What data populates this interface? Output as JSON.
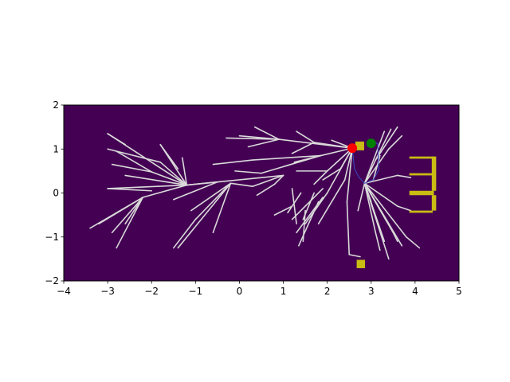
{
  "chart_data": {
    "type": "scatter",
    "title": "",
    "xlabel": "",
    "ylabel": "",
    "xlim": [
      -4,
      5
    ],
    "ylim": [
      -2,
      2
    ],
    "xticks": [
      -4,
      -3,
      -2,
      -1,
      0,
      1,
      2,
      3,
      4,
      5
    ],
    "yticks": [
      -2,
      -1,
      0,
      1,
      2
    ],
    "xtick_labels": [
      "−4",
      "−3",
      "−2",
      "−1",
      "0",
      "1",
      "2",
      "3",
      "4",
      "5"
    ],
    "ytick_labels": [
      "−2",
      "−1",
      "0",
      "1",
      "2"
    ],
    "grid": false,
    "colors": {
      "background": "#440154",
      "tree_edge": "#d9d9d9",
      "path": "#3b4cc0",
      "obstacle": "#c9bc12",
      "start": "#ff0000",
      "goal": "#008000"
    },
    "start": {
      "x": 2.57,
      "y": 1.02
    },
    "goal": {
      "x": 3.0,
      "y": 1.13
    },
    "obstacles": [
      {
        "x0": 2.64,
        "y0": 0.97,
        "x1": 2.84,
        "y1": 1.17
      },
      {
        "x0": 2.67,
        "y0": -1.71,
        "x1": 2.86,
        "y1": -1.52
      },
      {
        "x0": 3.87,
        "y0": 0.78,
        "x1": 4.43,
        "y1": 0.83
      },
      {
        "x0": 3.87,
        "y0": 0.4,
        "x1": 4.43,
        "y1": 0.45
      },
      {
        "x0": 3.87,
        "y0": -0.05,
        "x1": 4.43,
        "y1": 0.05
      },
      {
        "x0": 3.87,
        "y0": -0.45,
        "x1": 4.4,
        "y1": -0.4
      },
      {
        "x0": 4.38,
        "y0": 0.05,
        "x1": 4.48,
        "y1": 0.83
      },
      {
        "x0": 4.38,
        "y0": -0.4,
        "x1": 4.48,
        "y1": -0.05
      }
    ],
    "path": [
      [
        2.57,
        1.02
      ],
      [
        2.62,
        0.55
      ],
      [
        2.72,
        0.36
      ],
      [
        2.85,
        0.22
      ],
      [
        3.05,
        0.3
      ],
      [
        3.17,
        0.52
      ],
      [
        3.15,
        1.13
      ],
      [
        3.0,
        1.13
      ]
    ],
    "tree_edges": [
      [
        2.57,
        1.02,
        0.9,
        1.22
      ],
      [
        0.9,
        1.22,
        0.35,
        1.5
      ],
      [
        0.9,
        1.22,
        0.0,
        1.3
      ],
      [
        0.9,
        1.22,
        -0.3,
        1.25
      ],
      [
        0.9,
        1.22,
        0.2,
        1.05
      ],
      [
        2.57,
        1.02,
        1.7,
        1.15
      ],
      [
        1.7,
        1.15,
        1.3,
        1.4
      ],
      [
        1.7,
        1.15,
        1.2,
        0.9
      ],
      [
        2.57,
        1.02,
        1.85,
        0.85
      ],
      [
        1.85,
        0.85,
        1.0,
        0.6
      ],
      [
        1.85,
        0.85,
        1.25,
        0.7
      ],
      [
        2.57,
        1.02,
        2.1,
        1.2
      ],
      [
        2.57,
        1.02,
        2.0,
        0.5
      ],
      [
        2.0,
        0.5,
        1.3,
        0.5
      ],
      [
        2.0,
        0.5,
        1.7,
        0.2
      ],
      [
        1.85,
        0.85,
        0.3,
        0.75
      ],
      [
        0.3,
        0.75,
        -0.6,
        0.65
      ],
      [
        1.85,
        0.85,
        0.5,
        0.45
      ],
      [
        0.5,
        0.45,
        -0.1,
        0.5
      ],
      [
        1.0,
        0.4,
        -1.2,
        0.18
      ],
      [
        -1.2,
        0.18,
        -2.0,
        0.48
      ],
      [
        -2.0,
        0.48,
        -2.9,
        0.65
      ],
      [
        -2.0,
        0.48,
        -2.8,
        0.95
      ],
      [
        -1.2,
        0.18,
        -3.0,
        1.35
      ],
      [
        -3.0,
        1.35,
        -2.6,
        1.1
      ],
      [
        -1.2,
        0.18,
        -1.8,
        0.7
      ],
      [
        -1.8,
        0.7,
        -3.0,
        1.0
      ],
      [
        -1.2,
        0.18,
        -1.8,
        1.1
      ],
      [
        -1.8,
        1.1,
        -1.4,
        0.55
      ],
      [
        -1.2,
        0.18,
        -1.3,
        0.8
      ],
      [
        -1.2,
        0.18,
        -2.6,
        0.4
      ],
      [
        -1.2,
        0.18,
        -3.0,
        0.1
      ],
      [
        -3.0,
        0.1,
        -2.0,
        0.05
      ],
      [
        -1.2,
        0.18,
        -2.2,
        -0.1
      ],
      [
        -2.2,
        -0.1,
        -3.2,
        -0.7
      ],
      [
        -2.2,
        -0.1,
        -3.4,
        -0.8
      ],
      [
        -2.2,
        -0.1,
        -2.9,
        -0.9
      ],
      [
        -2.2,
        -0.1,
        -2.8,
        -1.25
      ],
      [
        -2.2,
        -0.1,
        -2.6,
        -0.7
      ],
      [
        -1.2,
        0.18,
        -0.5,
        0.25
      ],
      [
        -0.5,
        0.25,
        -1.5,
        -0.15
      ],
      [
        -0.2,
        0.22,
        -1.0,
        -0.6
      ],
      [
        -1.0,
        -0.6,
        -1.5,
        -1.25
      ],
      [
        -0.2,
        0.22,
        -1.4,
        -1.25
      ],
      [
        -0.2,
        0.22,
        -0.6,
        -0.9
      ],
      [
        -0.2,
        0.22,
        -1.1,
        -0.4
      ],
      [
        -0.2,
        0.22,
        0.3,
        0.15
      ],
      [
        0.3,
        0.15,
        1.0,
        0.4
      ],
      [
        1.0,
        0.4,
        0.8,
        0.2
      ],
      [
        0.8,
        0.2,
        0.4,
        -0.05
      ],
      [
        2.57,
        1.02,
        2.0,
        0.0
      ],
      [
        2.0,
        0.0,
        1.5,
        -0.7
      ],
      [
        1.9,
        0.1,
        1.2,
        -0.6
      ],
      [
        1.5,
        -0.4,
        1.45,
        -1.1
      ],
      [
        1.8,
        -0.2,
        1.35,
        -1.2
      ],
      [
        1.4,
        0.0,
        1.1,
        -0.45
      ],
      [
        1.2,
        -0.3,
        0.8,
        -0.5
      ],
      [
        1.7,
        0.0,
        1.45,
        -0.6
      ],
      [
        1.2,
        0.1,
        1.3,
        -0.7
      ],
      [
        1.9,
        -0.1,
        1.3,
        -0.9
      ],
      [
        2.57,
        1.02,
        2.4,
        0.3
      ],
      [
        2.4,
        0.3,
        1.8,
        -0.7
      ],
      [
        2.57,
        1.02,
        2.45,
        -0.2
      ],
      [
        2.45,
        -0.2,
        2.5,
        -1.4
      ],
      [
        2.5,
        -1.4,
        2.75,
        -1.45
      ],
      [
        2.57,
        1.02,
        2.3,
        0.55
      ],
      [
        2.3,
        0.55,
        1.9,
        0.3
      ],
      [
        2.85,
        0.22,
        3.1,
        0.75
      ],
      [
        3.1,
        0.75,
        3.45,
        1.45
      ],
      [
        3.1,
        0.75,
        3.6,
        1.5
      ],
      [
        2.85,
        0.22,
        3.4,
        1.0
      ],
      [
        3.4,
        1.0,
        3.7,
        1.3
      ],
      [
        2.85,
        0.22,
        3.3,
        1.4
      ],
      [
        2.85,
        0.22,
        3.6,
        0.4
      ],
      [
        3.6,
        0.4,
        3.9,
        0.35
      ],
      [
        3.05,
        0.3,
        3.2,
        0.85
      ],
      [
        2.85,
        0.22,
        3.4,
        -0.7
      ],
      [
        3.4,
        -0.7,
        3.6,
        -1.1
      ],
      [
        2.85,
        0.22,
        3.1,
        -0.9
      ],
      [
        3.1,
        -0.9,
        3.2,
        -1.3
      ],
      [
        2.85,
        0.22,
        3.4,
        -1.5
      ],
      [
        2.85,
        0.22,
        3.8,
        -1.0
      ],
      [
        3.8,
        -1.0,
        4.1,
        -1.25
      ],
      [
        2.85,
        0.22,
        3.7,
        -1.2
      ],
      [
        2.85,
        0.22,
        3.5,
        -0.9
      ],
      [
        2.85,
        0.22,
        3.3,
        -1.1
      ],
      [
        2.85,
        0.22,
        3.0,
        -0.2
      ],
      [
        2.85,
        0.22,
        2.7,
        -0.4
      ],
      [
        2.85,
        0.22,
        3.6,
        -0.3
      ],
      [
        3.6,
        -0.3,
        3.9,
        -0.4
      ]
    ]
  }
}
